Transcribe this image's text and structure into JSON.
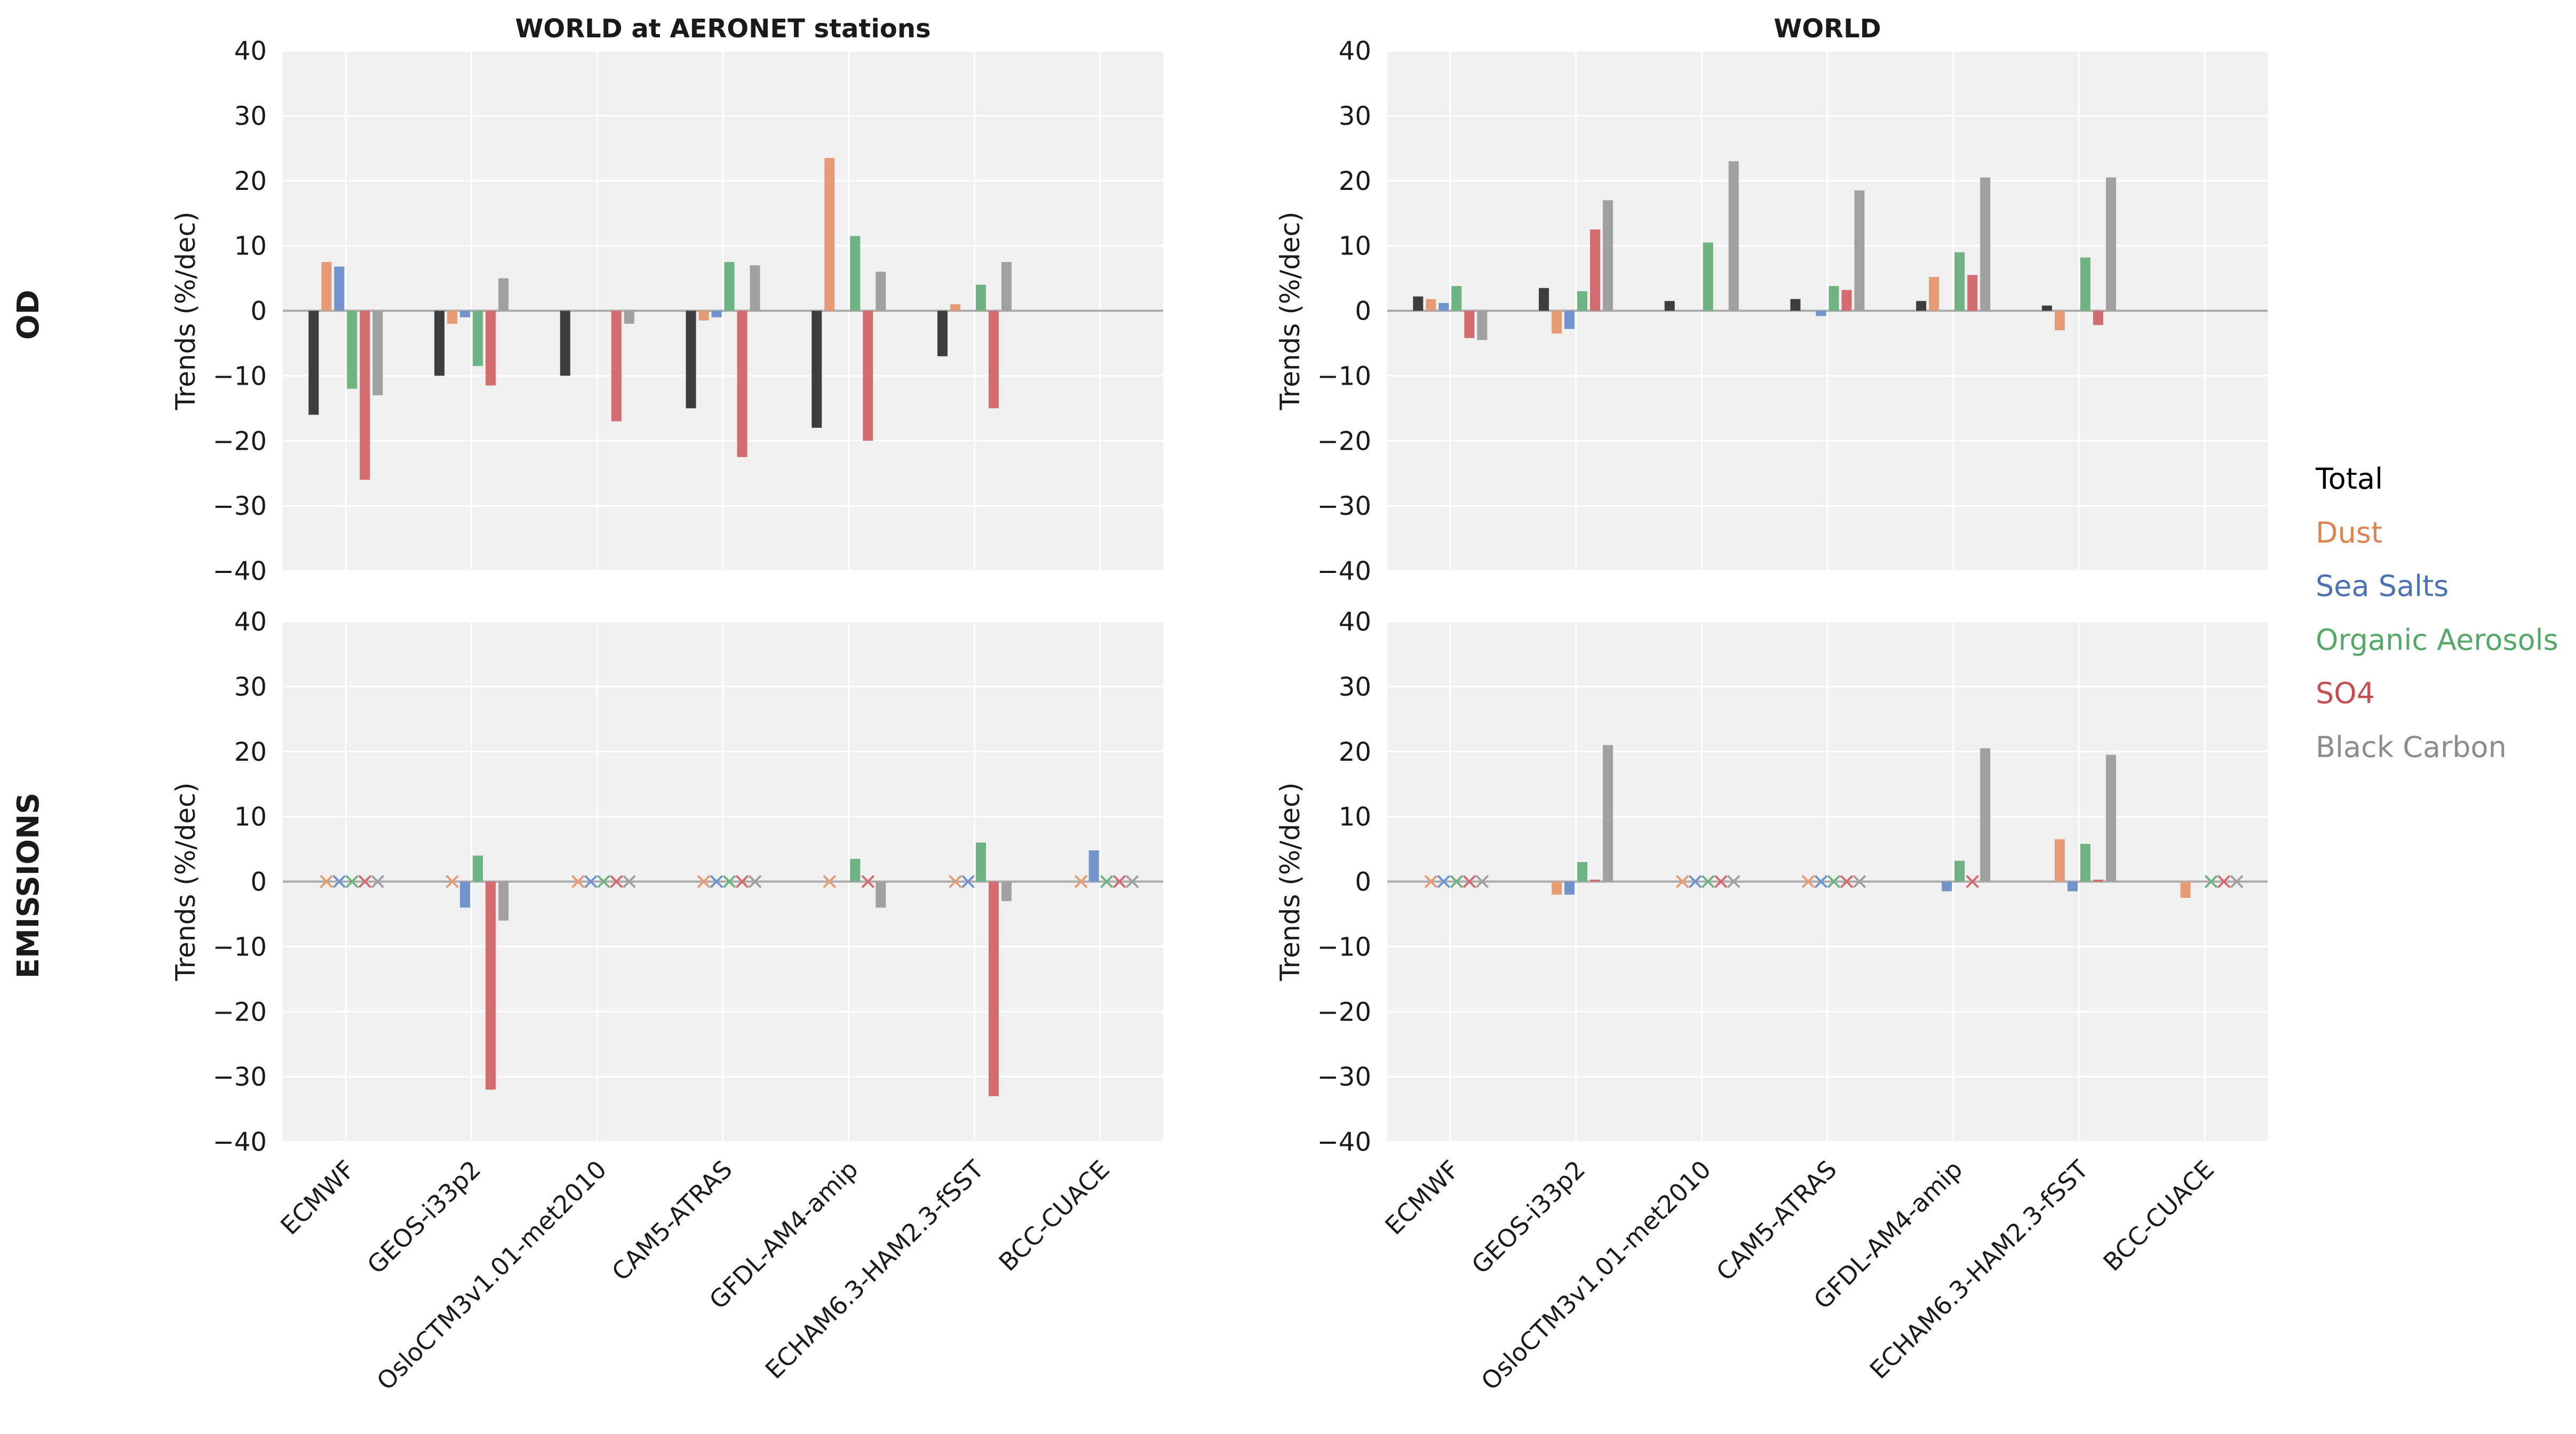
{
  "colors": {
    "Total": "#3d3d3d",
    "Dust": "#e59c74",
    "Sea Salts": "#7293cb",
    "Organic Aerosols": "#6fb383",
    "SO4": "#d36c70",
    "Black Carbon": "#a0a0a0",
    "legend_total": "#000000",
    "legend_dust": "#dd8452",
    "legend_sea_salts": "#4c72b0",
    "legend_organic": "#55a868",
    "legend_so4": "#c44e52",
    "legend_bc": "#8c8c8c",
    "panel_bg": "#f0f0f0",
    "grid": "#ffffff",
    "zero_line": "#aaaaaa"
  },
  "rows": [
    {
      "label": "OD"
    },
    {
      "label": "EMISSIONS"
    }
  ],
  "legend": {
    "placement": "right",
    "entries": [
      "Total",
      "Dust",
      "Sea Salts",
      "Organic Aerosols",
      "SO4",
      "Black Carbon"
    ]
  },
  "chart_data": [
    {
      "type": "bar",
      "title": "WORLD at AERONET stations",
      "row": "OD",
      "ylabel": "Trends (%/dec)",
      "ylim": [
        -40,
        40
      ],
      "yticks": [
        -40,
        -30,
        -20,
        -10,
        0,
        10,
        20,
        30,
        40
      ],
      "grid": true,
      "categories": [
        "ECMWF",
        "GEOS-i33p2",
        "OsloCTM3v1.01-met2010",
        "CAM5-ATRAS",
        "GFDL-AM4-amip",
        "ECHAM6.3-HAM2.3-fSST",
        "BCC-CUACE"
      ],
      "series": [
        {
          "name": "Total",
          "values": [
            -16,
            -10,
            -10,
            -15,
            -18,
            -7,
            null
          ]
        },
        {
          "name": "Dust",
          "values": [
            7.5,
            -2,
            null,
            -1.5,
            23.5,
            1,
            null
          ]
        },
        {
          "name": "Sea Salts",
          "values": [
            6.8,
            -1,
            null,
            -1,
            null,
            null,
            null
          ]
        },
        {
          "name": "Organic Aerosols",
          "values": [
            -12,
            -8.5,
            null,
            7.5,
            11.5,
            4,
            null
          ]
        },
        {
          "name": "SO4",
          "values": [
            -26,
            -11.5,
            -17,
            -22.5,
            -20,
            -15,
            null
          ]
        },
        {
          "name": "Black Carbon",
          "values": [
            -13,
            5,
            -2,
            7,
            6,
            7.5,
            null
          ]
        }
      ]
    },
    {
      "type": "bar",
      "title": "WORLD",
      "row": "OD",
      "ylabel": "Trends (%/dec)",
      "ylim": [
        -40,
        40
      ],
      "yticks": [
        -40,
        -30,
        -20,
        -10,
        0,
        10,
        20,
        30,
        40
      ],
      "grid": true,
      "categories": [
        "ECMWF",
        "GEOS-i33p2",
        "OsloCTM3v1.01-met2010",
        "CAM5-ATRAS",
        "GFDL-AM4-amip",
        "ECHAM6.3-HAM2.3-fSST",
        "BCC-CUACE"
      ],
      "series": [
        {
          "name": "Total",
          "values": [
            2.2,
            3.5,
            1.5,
            1.8,
            1.5,
            0.8,
            null
          ]
        },
        {
          "name": "Dust",
          "values": [
            1.8,
            -3.5,
            null,
            null,
            5.2,
            -3,
            null
          ]
        },
        {
          "name": "Sea Salts",
          "values": [
            1.2,
            -2.8,
            null,
            -0.8,
            null,
            null,
            null
          ]
        },
        {
          "name": "Organic Aerosols",
          "values": [
            3.8,
            3,
            10.5,
            3.8,
            9,
            8.2,
            null
          ]
        },
        {
          "name": "SO4",
          "values": [
            -4.2,
            12.5,
            null,
            3.2,
            5.5,
            -2.2,
            null
          ]
        },
        {
          "name": "Black Carbon",
          "values": [
            -4.5,
            17,
            23,
            18.5,
            20.5,
            20.5,
            null
          ]
        }
      ]
    },
    {
      "type": "bar",
      "title": "",
      "row": "EMISSIONS",
      "ylabel": "Trends (%/dec)",
      "ylim": [
        -40,
        40
      ],
      "yticks": [
        -40,
        -30,
        -20,
        -10,
        0,
        10,
        20,
        30,
        40
      ],
      "grid": true,
      "categories": [
        "ECMWF",
        "GEOS-i33p2",
        "OsloCTM3v1.01-met2010",
        "CAM5-ATRAS",
        "GFDL-AM4-amip",
        "ECHAM6.3-HAM2.3-fSST",
        "BCC-CUACE"
      ],
      "series": [
        {
          "name": "Total",
          "values": [
            null,
            null,
            null,
            null,
            null,
            null,
            null
          ]
        },
        {
          "name": "Dust",
          "values": [
            "x",
            "x",
            "x",
            "x",
            "x",
            "x",
            "x"
          ]
        },
        {
          "name": "Sea Salts",
          "values": [
            "x",
            -4,
            "x",
            "x",
            null,
            "x",
            4.8
          ]
        },
        {
          "name": "Organic Aerosols",
          "values": [
            "x",
            4,
            "x",
            "x",
            3.5,
            6,
            "x"
          ]
        },
        {
          "name": "SO4",
          "values": [
            "x",
            -32,
            "x",
            "x",
            "x",
            -33,
            "x"
          ]
        },
        {
          "name": "Black Carbon",
          "values": [
            "x",
            -6,
            "x",
            "x",
            -4,
            -3,
            "x"
          ]
        }
      ]
    },
    {
      "type": "bar",
      "title": "",
      "row": "EMISSIONS",
      "ylabel": "Trends (%/dec)",
      "ylim": [
        -40,
        40
      ],
      "yticks": [
        -40,
        -30,
        -20,
        -10,
        0,
        10,
        20,
        30,
        40
      ],
      "grid": true,
      "categories": [
        "ECMWF",
        "GEOS-i33p2",
        "OsloCTM3v1.01-met2010",
        "CAM5-ATRAS",
        "GFDL-AM4-amip",
        "ECHAM6.3-HAM2.3-fSST",
        "BCC-CUACE"
      ],
      "series": [
        {
          "name": "Total",
          "values": [
            null,
            null,
            null,
            null,
            null,
            null,
            null
          ]
        },
        {
          "name": "Dust",
          "values": [
            "x",
            -2,
            "x",
            "x",
            null,
            6.5,
            -2.5
          ]
        },
        {
          "name": "Sea Salts",
          "values": [
            "x",
            -2,
            "x",
            "x",
            -1.5,
            -1.5,
            null
          ]
        },
        {
          "name": "Organic Aerosols",
          "values": [
            "x",
            3,
            "x",
            "x",
            3.2,
            5.8,
            "x"
          ]
        },
        {
          "name": "SO4",
          "values": [
            "x",
            0.3,
            "x",
            "x",
            "x",
            0.3,
            "x"
          ]
        },
        {
          "name": "Black Carbon",
          "values": [
            "x",
            21,
            "x",
            "x",
            20.5,
            19.5,
            "x"
          ]
        }
      ]
    }
  ]
}
